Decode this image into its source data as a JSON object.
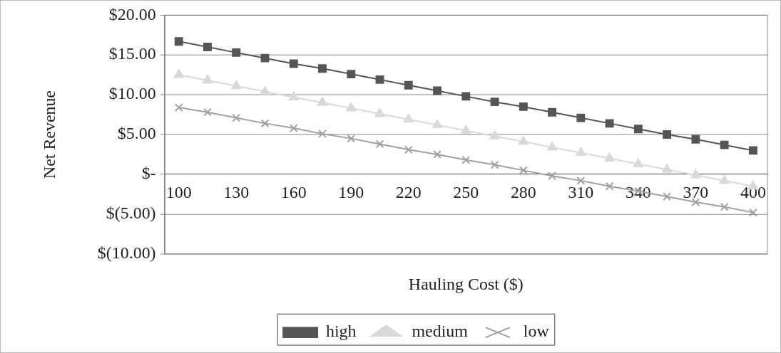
{
  "chart_data": {
    "type": "line",
    "xlabel": "Hauling Cost ($)",
    "ylabel": "Net Revenue",
    "categories": [
      "100",
      null,
      "130",
      null,
      "160",
      null,
      "190",
      null,
      "220",
      null,
      "250",
      null,
      "280",
      null,
      "310",
      null,
      "340",
      null,
      "370",
      null,
      "400"
    ],
    "series": [
      {
        "name": "high",
        "color": "#555555",
        "marker": "square",
        "values": [
          16.7,
          16.0,
          15.3,
          14.6,
          13.9,
          13.3,
          12.6,
          11.9,
          11.2,
          10.5,
          9.8,
          9.1,
          8.5,
          7.8,
          7.1,
          6.4,
          5.7,
          5.0,
          4.4,
          3.7,
          3.0
        ]
      },
      {
        "name": "medium",
        "color": "#d9d9d9",
        "marker": "triangle",
        "values": [
          12.5,
          11.8,
          11.1,
          10.4,
          9.7,
          9.0,
          8.3,
          7.6,
          6.9,
          6.2,
          5.5,
          4.8,
          4.1,
          3.4,
          2.7,
          2.0,
          1.3,
          0.6,
          -0.1,
          -0.8,
          -1.5
        ]
      },
      {
        "name": "low",
        "color": "#a0a0a0",
        "marker": "cross",
        "values": [
          8.4,
          7.8,
          7.1,
          6.4,
          5.8,
          5.1,
          4.5,
          3.8,
          3.1,
          2.5,
          1.8,
          1.2,
          0.5,
          -0.2,
          -0.8,
          -1.5,
          -2.1,
          -2.8,
          -3.5,
          -4.1,
          -4.8
        ]
      }
    ],
    "ylim": [
      -10,
      20
    ],
    "yticks": [
      {
        "value": -10,
        "label": "$(10.00)"
      },
      {
        "value": -5,
        "label": "$(5.00)"
      },
      {
        "value": 0,
        "label": "$-"
      },
      {
        "value": 5,
        "label": "$5.00"
      },
      {
        "value": 10,
        "label": "$10.00"
      },
      {
        "value": 15,
        "label": "$15.00"
      },
      {
        "value": 20,
        "label": "$20.00"
      }
    ],
    "grid": "y",
    "legend": "bottom",
    "line_style": "solid"
  }
}
